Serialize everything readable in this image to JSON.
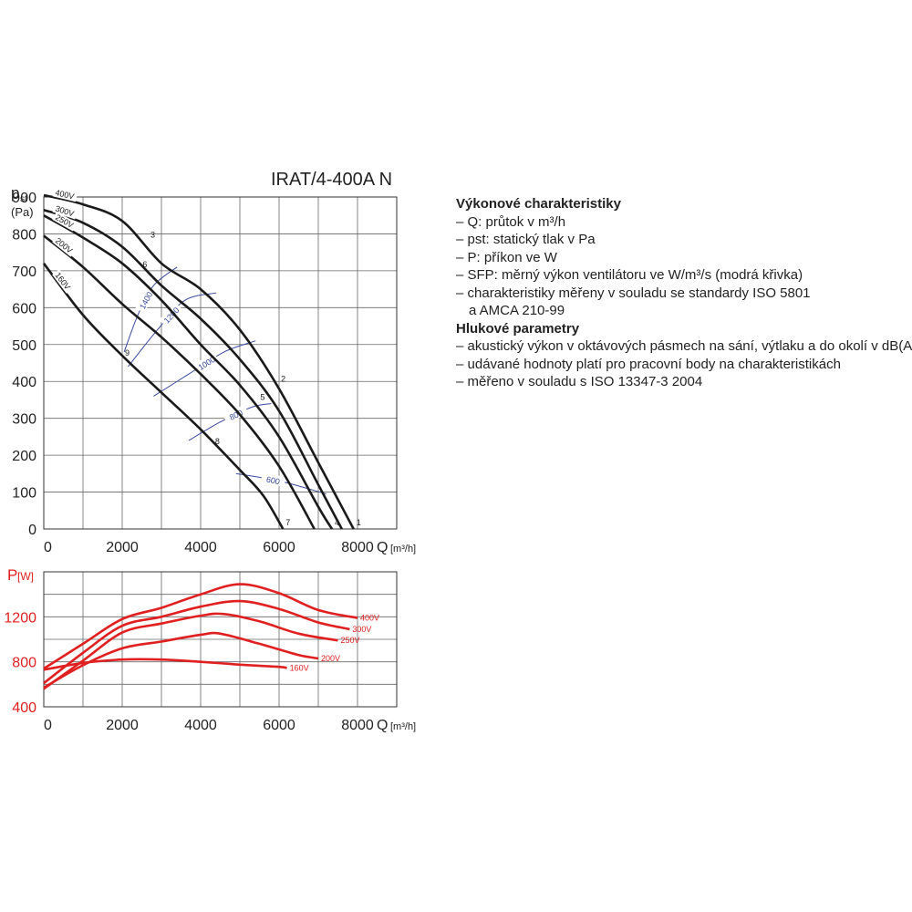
{
  "model": "IRAT/4-400A N",
  "main_axis": {
    "y_label_main": "p",
    "y_label_sub": "st",
    "y_unit": "(Pa)",
    "x_label": "Q",
    "x_unit": "[m³/h]"
  },
  "power_axis": {
    "y_label": "P",
    "y_unit": "[W]",
    "x_label": "Q",
    "x_unit": "[m³/h]"
  },
  "info": {
    "heading1": "Výkonové charakteristiky",
    "lines1": [
      "– Q: průtok v m³/h",
      "– pst: statický tlak v Pa",
      "– P: příkon ve W",
      "– SFP: měrný výkon ventilátoru ve W/m³/s (modrá křivka)",
      "– charakteristiky měřeny v souladu se standardy ISO 5801",
      "a AMCA 210-99"
    ],
    "heading2": "Hlukové parametry",
    "lines2": [
      "– akustický výkon v oktávových pásmech na sání, výtlaku a do okolí v dB(A)",
      "– udávané hodnoty platí pro pracovní body na charakteristikách",
      "– měřeno v souladu s ISO 13347-3 2004"
    ]
  },
  "chart_data": [
    {
      "type": "line",
      "title": "IRAT/4-400A N",
      "xlabel": "Q [m³/h]",
      "ylabel": "pst (Pa)",
      "xlim": [
        0,
        9000
      ],
      "ylim": [
        0,
        900
      ],
      "xticks": [
        0,
        2000,
        4000,
        6000,
        8000
      ],
      "yticks": [
        0,
        100,
        200,
        300,
        400,
        500,
        600,
        700,
        800,
        900
      ],
      "grid": true,
      "series": [
        {
          "name": "400V",
          "color": "#1a1a1a",
          "points": [
            [
              0,
              905
            ],
            [
              1000,
              880
            ],
            [
              2000,
              835
            ],
            [
              3000,
              720
            ],
            [
              4000,
              650
            ],
            [
              5000,
              540
            ],
            [
              6000,
              380
            ],
            [
              7000,
              180
            ],
            [
              7900,
              0
            ]
          ]
        },
        {
          "name": "300V",
          "color": "#1a1a1a",
          "points": [
            [
              0,
              865
            ],
            [
              1000,
              830
            ],
            [
              2000,
              765
            ],
            [
              3000,
              660
            ],
            [
              4000,
              570
            ],
            [
              5000,
              460
            ],
            [
              6000,
              320
            ],
            [
              7000,
              120
            ],
            [
              7600,
              0
            ]
          ]
        },
        {
          "name": "250V",
          "color": "#1a1a1a",
          "points": [
            [
              0,
              850
            ],
            [
              1000,
              790
            ],
            [
              2000,
              720
            ],
            [
              3000,
              620
            ],
            [
              4000,
              500
            ],
            [
              5000,
              390
            ],
            [
              6000,
              250
            ],
            [
              7000,
              60
            ],
            [
              7350,
              0
            ]
          ]
        },
        {
          "name": "200V",
          "color": "#1a1a1a",
          "points": [
            [
              0,
              795
            ],
            [
              1000,
              710
            ],
            [
              2000,
              610
            ],
            [
              3000,
              520
            ],
            [
              4000,
              420
            ],
            [
              5000,
              310
            ],
            [
              6000,
              170
            ],
            [
              6900,
              0
            ]
          ]
        },
        {
          "name": "160V",
          "color": "#1a1a1a",
          "points": [
            [
              0,
              720
            ],
            [
              1000,
              580
            ],
            [
              2000,
              470
            ],
            [
              3000,
              370
            ],
            [
              4000,
              270
            ],
            [
              5000,
              160
            ],
            [
              5600,
              90
            ],
            [
              6100,
              0
            ]
          ]
        }
      ],
      "sfp_curves": [
        {
          "label": "1400",
          "points": [
            [
              2050,
              480
            ],
            [
              2400,
              580
            ],
            [
              2800,
              660
            ],
            [
              3400,
              710
            ]
          ]
        },
        {
          "label": "1200",
          "points": [
            [
              2150,
              440
            ],
            [
              2900,
              540
            ],
            [
              3600,
              620
            ],
            [
              4400,
              640
            ]
          ]
        },
        {
          "label": "1000",
          "points": [
            [
              2800,
              360
            ],
            [
              3700,
              420
            ],
            [
              4600,
              480
            ],
            [
              5400,
              510
            ]
          ]
        },
        {
          "label": "800",
          "points": [
            [
              3700,
              240
            ],
            [
              4500,
              290
            ],
            [
              5300,
              330
            ],
            [
              5800,
              340
            ]
          ]
        },
        {
          "label": "600",
          "points": [
            [
              4900,
              150
            ],
            [
              5500,
              140
            ],
            [
              6200,
              125
            ],
            [
              7200,
              95
            ]
          ]
        }
      ],
      "operating_points": [
        {
          "label": "1",
          "x": 7900,
          "y": 0
        },
        {
          "label": "2",
          "x": 5980,
          "y": 390
        },
        {
          "label": "3",
          "x": 2650,
          "y": 780
        },
        {
          "label": "4",
          "x": 7350,
          "y": 0
        },
        {
          "label": "5",
          "x": 5450,
          "y": 340
        },
        {
          "label": "6",
          "x": 2450,
          "y": 700
        },
        {
          "label": "7",
          "x": 6100,
          "y": 0
        },
        {
          "label": "8",
          "x": 4300,
          "y": 220
        },
        {
          "label": "9",
          "x": 2000,
          "y": 460
        }
      ]
    },
    {
      "type": "line",
      "xlabel": "Q [m³/h]",
      "ylabel": "P [W]",
      "xlim": [
        0,
        9000
      ],
      "ylim": [
        400,
        1600
      ],
      "xticks": [
        0,
        2000,
        4000,
        6000,
        8000
      ],
      "yticks": [
        400,
        800,
        1200
      ],
      "grid": true,
      "series": [
        {
          "name": "400V",
          "color": "#e02020",
          "points": [
            [
              0,
              740
            ],
            [
              1000,
              960
            ],
            [
              2000,
              1180
            ],
            [
              3000,
              1280
            ],
            [
              4000,
              1400
            ],
            [
              5000,
              1490
            ],
            [
              6000,
              1410
            ],
            [
              7000,
              1260
            ],
            [
              8000,
              1190
            ]
          ]
        },
        {
          "name": "300V",
          "color": "#e02020",
          "points": [
            [
              0,
              610
            ],
            [
              1000,
              880
            ],
            [
              2000,
              1120
            ],
            [
              3000,
              1200
            ],
            [
              4000,
              1290
            ],
            [
              5000,
              1340
            ],
            [
              6000,
              1270
            ],
            [
              7000,
              1150
            ],
            [
              7800,
              1090
            ]
          ]
        },
        {
          "name": "250V",
          "color": "#e02020",
          "points": [
            [
              0,
              560
            ],
            [
              1000,
              810
            ],
            [
              2000,
              1060
            ],
            [
              3000,
              1140
            ],
            [
              4000,
              1210
            ],
            [
              4600,
              1225
            ],
            [
              5500,
              1160
            ],
            [
              6500,
              1050
            ],
            [
              7500,
              990
            ]
          ]
        },
        {
          "name": "200V",
          "color": "#e02020",
          "points": [
            [
              0,
              570
            ],
            [
              1000,
              770
            ],
            [
              2000,
              920
            ],
            [
              3000,
              980
            ],
            [
              4000,
              1040
            ],
            [
              4500,
              1050
            ],
            [
              5500,
              960
            ],
            [
              6500,
              860
            ],
            [
              7000,
              830
            ]
          ]
        },
        {
          "name": "160V",
          "color": "#e02020",
          "points": [
            [
              0,
              730
            ],
            [
              1000,
              790
            ],
            [
              2000,
              820
            ],
            [
              3000,
              820
            ],
            [
              4000,
              800
            ],
            [
              5000,
              775
            ],
            [
              6000,
              755
            ],
            [
              6200,
              745
            ]
          ]
        }
      ]
    }
  ]
}
